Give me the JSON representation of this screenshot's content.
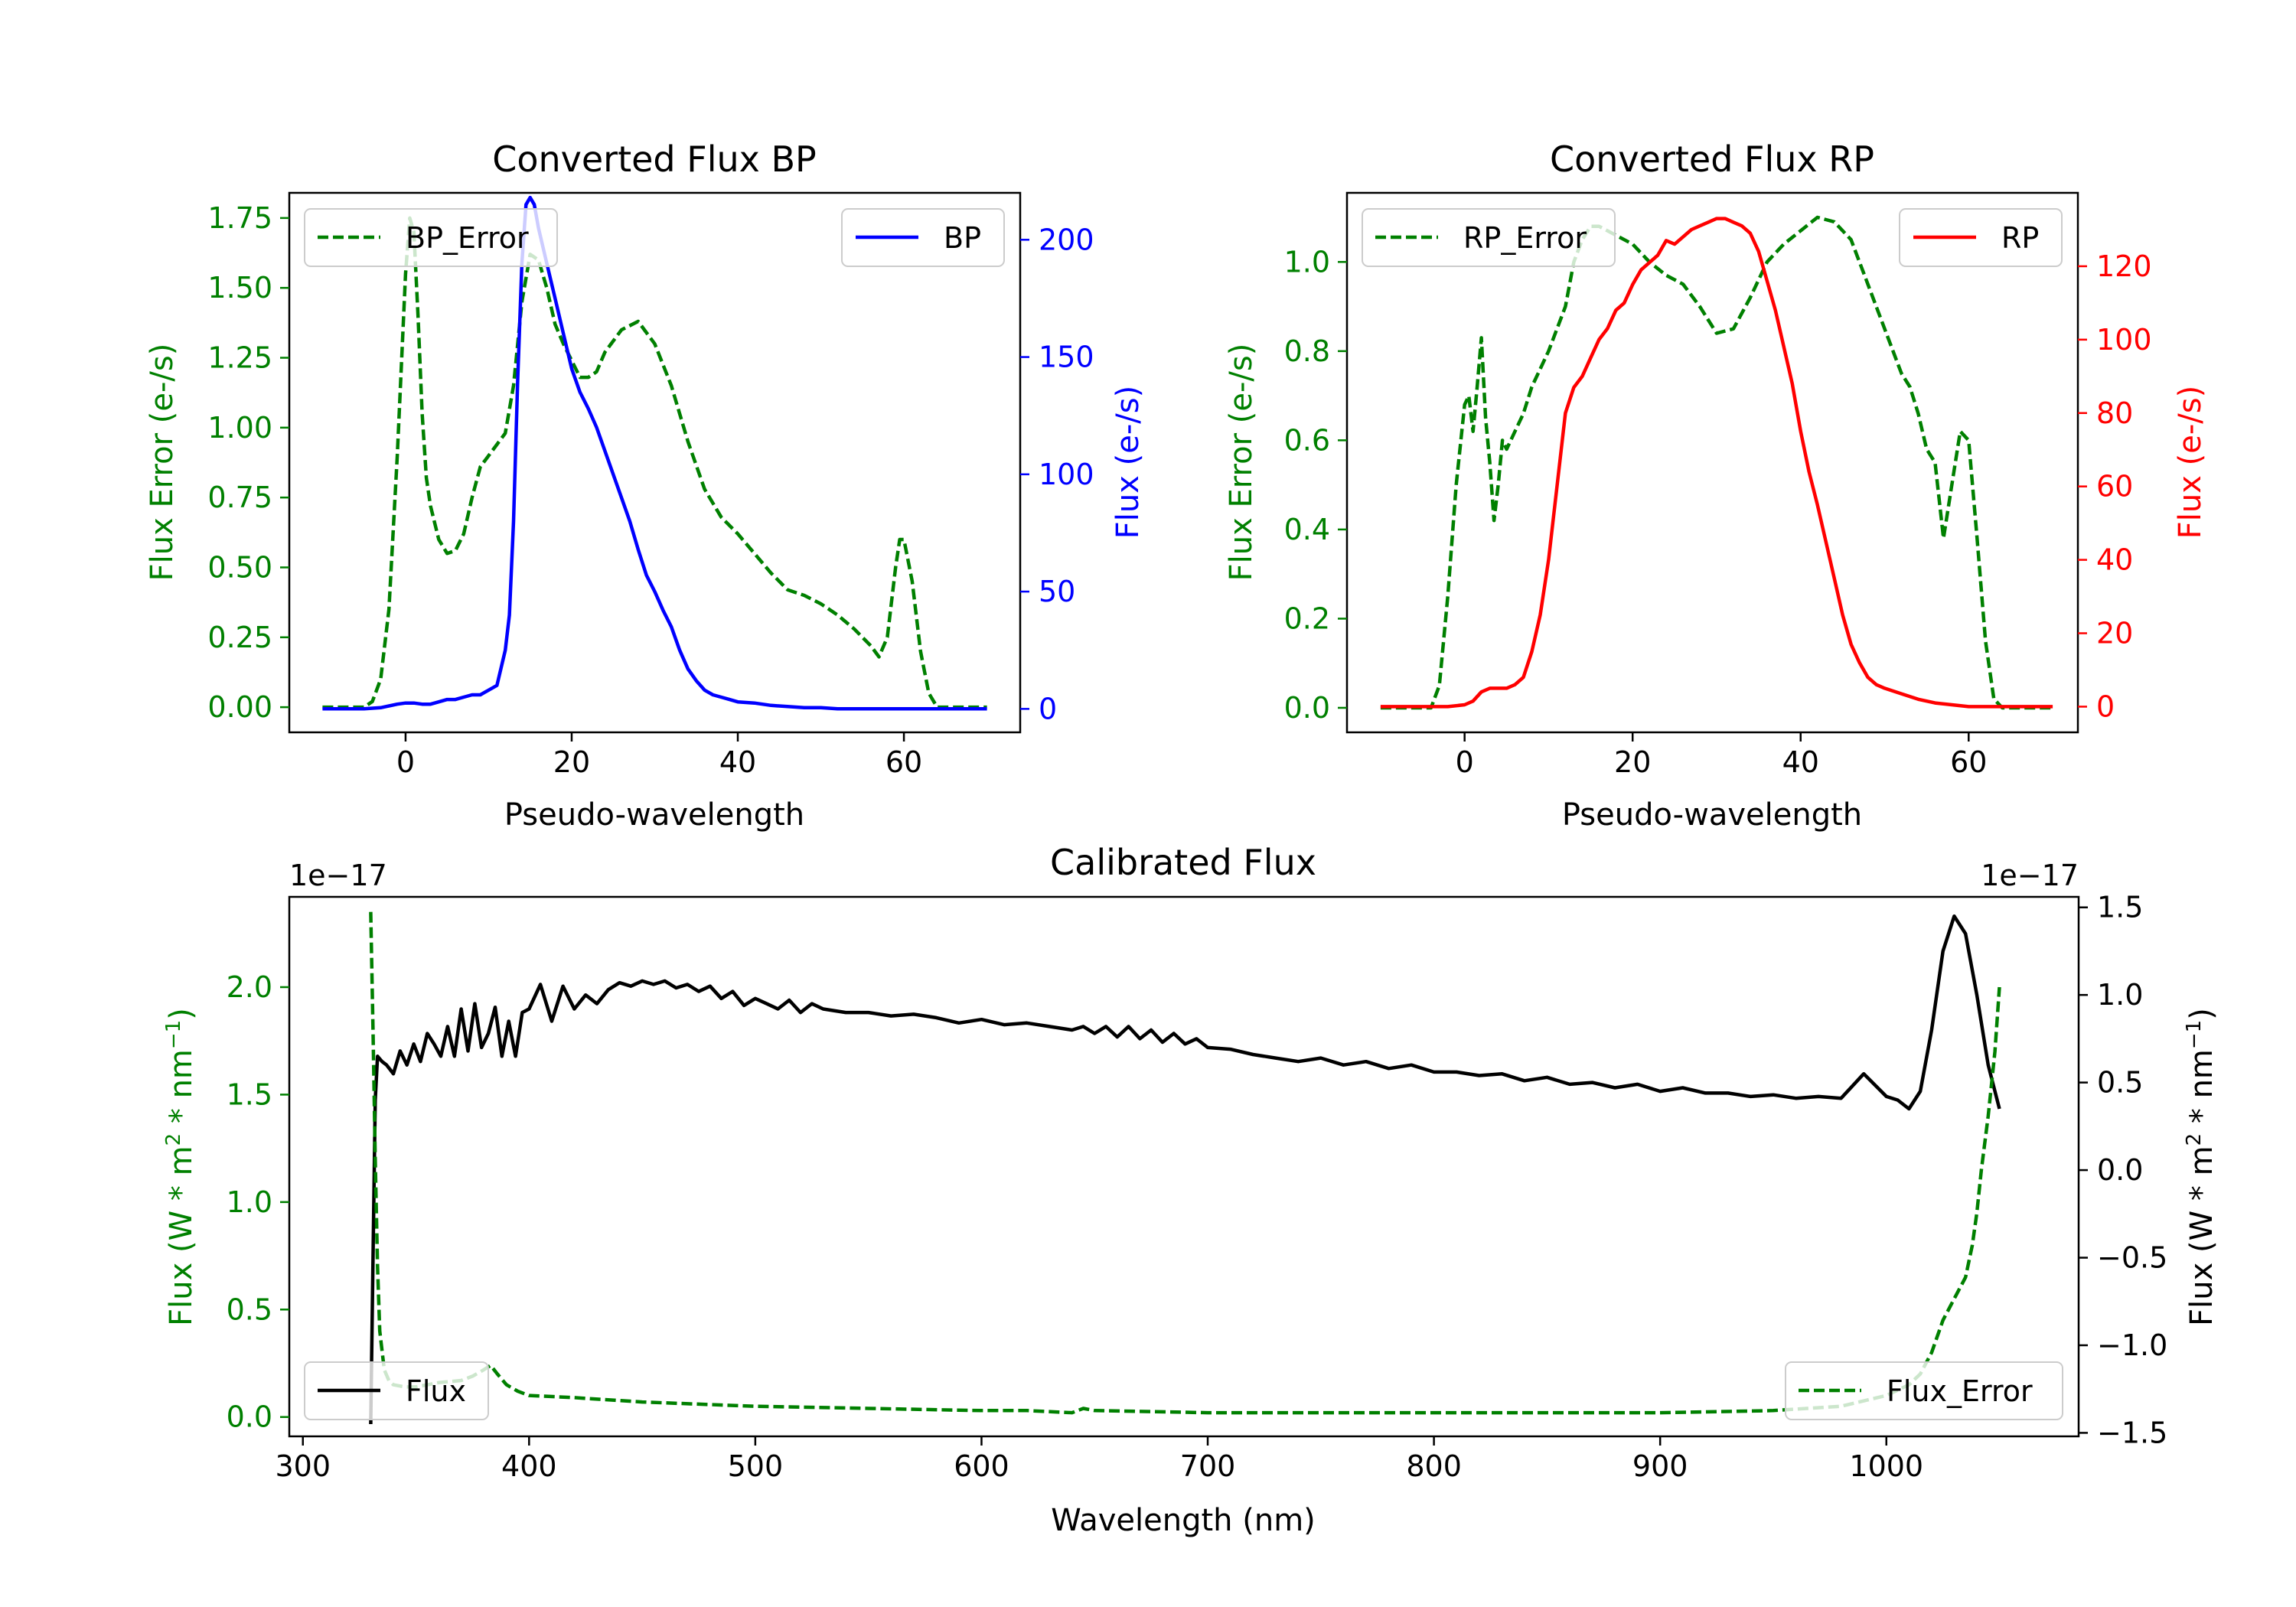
{
  "chart_data": [
    {
      "id": "bp",
      "type": "line",
      "title": "Converted Flux BP",
      "xlabel": "Pseudo-wavelength",
      "ylabel_left": "Flux Error (e-/s)",
      "ylabel_right": "Flux (e-/s)",
      "xlim": [
        -14,
        74
      ],
      "ylim_left": [
        -0.09,
        1.84
      ],
      "ylim_right": [
        -10,
        220
      ],
      "xticks": [
        0,
        20,
        40,
        60
      ],
      "yticks_left": [
        0.0,
        0.25,
        0.5,
        0.75,
        1.0,
        1.25,
        1.5,
        1.75
      ],
      "yticks_left_labels": [
        "0.00",
        "0.25",
        "0.50",
        "0.75",
        "1.00",
        "1.25",
        "1.50",
        "1.75"
      ],
      "yticks_right": [
        0,
        50,
        100,
        150,
        200
      ],
      "yticks_right_labels": [
        "0",
        "50",
        "100",
        "150",
        "200"
      ],
      "left_axis_color": "#008000",
      "right_axis_color": "#0000ff",
      "series": [
        {
          "name": "BP_Error",
          "axis": "left",
          "color": "#008000",
          "style": "dashed",
          "x": [
            -10,
            -5,
            -4,
            -3,
            -2,
            -1,
            0,
            0.5,
            1,
            1.5,
            2,
            2.5,
            3,
            4,
            5,
            6,
            7,
            8,
            9,
            10,
            12,
            13,
            14,
            15,
            16,
            17,
            18,
            19,
            20,
            21,
            22,
            23,
            24,
            26,
            28,
            30,
            32,
            34,
            36,
            38,
            40,
            42,
            44,
            46,
            48,
            50,
            52,
            54,
            56,
            57,
            58,
            59,
            59.5,
            60,
            61,
            62,
            63,
            64,
            65,
            66,
            70
          ],
          "values": [
            0,
            0,
            0.02,
            0.1,
            0.35,
            0.9,
            1.55,
            1.75,
            1.7,
            1.4,
            1.05,
            0.82,
            0.72,
            0.6,
            0.55,
            0.56,
            0.62,
            0.75,
            0.86,
            0.9,
            0.98,
            1.15,
            1.45,
            1.62,
            1.6,
            1.5,
            1.37,
            1.3,
            1.24,
            1.18,
            1.18,
            1.2,
            1.27,
            1.35,
            1.38,
            1.3,
            1.15,
            0.95,
            0.78,
            0.68,
            0.62,
            0.55,
            0.48,
            0.42,
            0.4,
            0.37,
            0.33,
            0.28,
            0.22,
            0.18,
            0.25,
            0.5,
            0.6,
            0.6,
            0.45,
            0.2,
            0.05,
            0,
            0,
            0,
            0
          ]
        },
        {
          "name": "BP",
          "axis": "right",
          "color": "#0000ff",
          "style": "solid",
          "x": [
            -10,
            -5,
            -3,
            -1,
            0,
            1,
            2,
            3,
            4,
            5,
            6,
            7,
            8,
            9,
            10,
            11,
            12,
            12.5,
            13,
            13.5,
            14,
            14.5,
            15,
            15.5,
            16,
            17,
            18,
            19,
            20,
            21,
            22,
            23,
            24,
            25,
            26,
            27,
            28,
            29,
            30,
            31,
            32,
            33,
            34,
            35,
            36,
            37,
            38,
            39,
            40,
            42,
            44,
            46,
            48,
            50,
            52,
            54,
            56,
            58,
            60,
            62,
            64,
            66,
            70
          ],
          "values": [
            0,
            0,
            0.5,
            2,
            2.5,
            2.5,
            2,
            2,
            3,
            4,
            4,
            5,
            6,
            6,
            8,
            10,
            25,
            40,
            80,
            140,
            190,
            215,
            218,
            215,
            205,
            190,
            175,
            160,
            145,
            135,
            128,
            120,
            110,
            100,
            90,
            80,
            68,
            57,
            50,
            42,
            35,
            25,
            17,
            12,
            8,
            6,
            5,
            4,
            3,
            2.5,
            1.5,
            1,
            0.5,
            0.5,
            0,
            0,
            0,
            0,
            0,
            0,
            0,
            0,
            0
          ]
        }
      ],
      "legends": [
        {
          "label": "BP_Error",
          "position": "top-left"
        },
        {
          "label": "BP",
          "position": "top-right"
        }
      ]
    },
    {
      "id": "rp",
      "type": "line",
      "title": "Converted Flux RP",
      "xlabel": "Pseudo-wavelength",
      "ylabel_left": "Flux Error (e-/s)",
      "ylabel_right": "Flux (e-/s)",
      "xlim": [
        -14,
        73
      ],
      "ylim_left": [
        -0.055,
        1.155
      ],
      "ylim_right": [
        -7,
        140
      ],
      "xticks": [
        0,
        20,
        40,
        60
      ],
      "yticks_left": [
        0.0,
        0.2,
        0.4,
        0.6,
        0.8,
        1.0
      ],
      "yticks_left_labels": [
        "0.0",
        "0.2",
        "0.4",
        "0.6",
        "0.8",
        "1.0"
      ],
      "yticks_right": [
        0,
        20,
        40,
        60,
        80,
        100,
        120
      ],
      "yticks_right_labels": [
        "0",
        "20",
        "40",
        "60",
        "80",
        "100",
        "120"
      ],
      "left_axis_color": "#008000",
      "right_axis_color": "#ff0000",
      "series": [
        {
          "name": "RP_Error",
          "axis": "left",
          "color": "#008000",
          "style": "dashed",
          "x": [
            -10,
            -5,
            -4,
            -3,
            -2,
            -1,
            0,
            0.5,
            1,
            1.5,
            2,
            2.5,
            3,
            3.5,
            4,
            4.5,
            5,
            6,
            7,
            8,
            9,
            10,
            11,
            12,
            13,
            14,
            15,
            16,
            17,
            18,
            20,
            22,
            24,
            26,
            28,
            30,
            32,
            34,
            36,
            38,
            40,
            42,
            44,
            46,
            48,
            50,
            52,
            53,
            54,
            55,
            56,
            57,
            58,
            59,
            60,
            61,
            62,
            63,
            64,
            65,
            66,
            70
          ],
          "values": [
            0,
            0,
            0,
            0.05,
            0.25,
            0.5,
            0.68,
            0.7,
            0.62,
            0.72,
            0.83,
            0.65,
            0.55,
            0.42,
            0.5,
            0.6,
            0.58,
            0.62,
            0.66,
            0.72,
            0.76,
            0.8,
            0.85,
            0.9,
            1.0,
            1.05,
            1.08,
            1.08,
            1.07,
            1.06,
            1.04,
            1.0,
            0.97,
            0.95,
            0.9,
            0.84,
            0.85,
            0.92,
            1.0,
            1.04,
            1.07,
            1.1,
            1.09,
            1.05,
            0.95,
            0.85,
            0.75,
            0.72,
            0.66,
            0.58,
            0.55,
            0.38,
            0.5,
            0.62,
            0.6,
            0.38,
            0.15,
            0.02,
            0,
            0,
            0,
            0
          ]
        },
        {
          "name": "RP",
          "axis": "right",
          "color": "#ff0000",
          "style": "solid",
          "x": [
            -10,
            -4,
            -2,
            0,
            1,
            2,
            3,
            4,
            5,
            6,
            7,
            8,
            9,
            10,
            11,
            12,
            13,
            14,
            15,
            16,
            17,
            18,
            19,
            20,
            21,
            22,
            23,
            24,
            25,
            26,
            27,
            28,
            29,
            30,
            31,
            32,
            33,
            34,
            35,
            36,
            37,
            38,
            39,
            40,
            41,
            42,
            43,
            44,
            45,
            46,
            47,
            48,
            49,
            50,
            52,
            54,
            56,
            58,
            60,
            62,
            64,
            66,
            70
          ],
          "values": [
            0,
            0,
            0,
            0.5,
            1.5,
            4,
            5,
            5,
            5,
            6,
            8,
            15,
            25,
            40,
            60,
            80,
            87,
            90,
            95,
            100,
            103,
            108,
            110,
            115,
            119,
            121,
            123,
            127,
            126,
            128,
            130,
            131,
            132,
            133,
            133,
            132,
            131,
            129,
            124,
            116,
            108,
            98,
            88,
            75,
            64,
            55,
            45,
            35,
            25,
            17,
            12,
            8,
            6,
            5,
            3.5,
            2,
            1,
            0.5,
            0,
            0,
            0,
            0,
            0
          ]
        }
      ],
      "legends": [
        {
          "label": "RP_Error",
          "position": "top-left"
        },
        {
          "label": "RP",
          "position": "top-right"
        }
      ]
    },
    {
      "id": "cal",
      "type": "line",
      "title": "Calibrated Flux",
      "xlabel": "Wavelength (nm)",
      "ylabel_left": "Flux (W * m^2 * nm^-1)",
      "ylabel_right": "Flux (W * m^2 * nm^-1)",
      "offset_left": "1e−17",
      "offset_right": "1e−17",
      "xlim": [
        294,
        1085
      ],
      "ylim_left": [
        -0.09,
        2.42
      ],
      "ylim_right": [
        -1.52,
        1.56
      ],
      "xticks": [
        300,
        400,
        500,
        600,
        700,
        800,
        900,
        1000
      ],
      "xtick_labels": [
        "300",
        "400",
        "500",
        "600",
        "700",
        "800",
        "900",
        "1000"
      ],
      "yticks_left": [
        0.0,
        0.5,
        1.0,
        1.5,
        2.0
      ],
      "yticks_left_labels": [
        "0.0",
        "0.5",
        "1.0",
        "1.5",
        "2.0"
      ],
      "yticks_right": [
        -1.5,
        -1.0,
        -0.5,
        0.0,
        0.5,
        1.0,
        1.5
      ],
      "yticks_right_labels": [
        "−1.5",
        "−1.0",
        "−0.5",
        "0.0",
        "0.5",
        "1.0",
        "1.5"
      ],
      "left_axis_color": "#008000",
      "right_axis_color": "#000000",
      "series": [
        {
          "name": "Flux",
          "axis": "right",
          "color": "#000000",
          "style": "solid",
          "x": [
            330,
            331,
            332,
            333,
            335,
            337,
            340,
            343,
            346,
            349,
            352,
            355,
            358,
            361,
            364,
            367,
            370,
            373,
            376,
            379,
            382,
            385,
            388,
            391,
            394,
            397,
            400,
            405,
            410,
            415,
            420,
            425,
            430,
            435,
            440,
            445,
            450,
            455,
            460,
            465,
            470,
            475,
            480,
            485,
            490,
            495,
            500,
            505,
            510,
            515,
            520,
            525,
            530,
            540,
            550,
            560,
            570,
            580,
            590,
            600,
            610,
            620,
            630,
            640,
            645,
            650,
            655,
            660,
            665,
            670,
            675,
            680,
            685,
            690,
            695,
            700,
            710,
            720,
            730,
            740,
            750,
            760,
            770,
            780,
            790,
            800,
            810,
            820,
            830,
            840,
            850,
            860,
            870,
            880,
            890,
            900,
            910,
            920,
            930,
            940,
            950,
            960,
            970,
            980,
            990,
            1000,
            1005,
            1010,
            1015,
            1020,
            1025,
            1030,
            1035,
            1040,
            1045,
            1050
          ],
          "values": [
            -1.45,
            -0.5,
            0.4,
            0.65,
            0.62,
            0.6,
            0.55,
            0.68,
            0.6,
            0.72,
            0.62,
            0.78,
            0.72,
            0.65,
            0.82,
            0.65,
            0.92,
            0.68,
            0.95,
            0.7,
            0.78,
            0.93,
            0.65,
            0.85,
            0.65,
            0.9,
            0.92,
            1.06,
            0.85,
            1.05,
            0.92,
            1.0,
            0.95,
            1.03,
            1.07,
            1.05,
            1.08,
            1.06,
            1.08,
            1.04,
            1.06,
            1.02,
            1.05,
            0.98,
            1.02,
            0.94,
            0.98,
            0.95,
            0.92,
            0.97,
            0.9,
            0.95,
            0.92,
            0.9,
            0.9,
            0.88,
            0.89,
            0.87,
            0.84,
            0.86,
            0.83,
            0.84,
            0.82,
            0.8,
            0.82,
            0.78,
            0.82,
            0.76,
            0.82,
            0.75,
            0.8,
            0.73,
            0.78,
            0.72,
            0.75,
            0.7,
            0.69,
            0.66,
            0.64,
            0.62,
            0.64,
            0.6,
            0.62,
            0.58,
            0.6,
            0.56,
            0.56,
            0.54,
            0.55,
            0.51,
            0.53,
            0.49,
            0.5,
            0.47,
            0.49,
            0.45,
            0.47,
            0.44,
            0.44,
            0.42,
            0.43,
            0.41,
            0.42,
            0.41,
            0.55,
            0.42,
            0.4,
            0.35,
            0.45,
            0.8,
            1.25,
            1.45,
            1.35,
            1.0,
            0.6,
            0.35
          ]
        },
        {
          "name": "Flux_Error",
          "axis": "left",
          "color": "#008000",
          "style": "dashed",
          "x": [
            330,
            331,
            332,
            333,
            334,
            336,
            338,
            340,
            345,
            350,
            360,
            370,
            375,
            380,
            383,
            386,
            390,
            395,
            400,
            420,
            450,
            500,
            550,
            600,
            620,
            640,
            645,
            650,
            700,
            750,
            800,
            850,
            900,
            950,
            980,
            1000,
            1010,
            1015,
            1020,
            1025,
            1030,
            1035,
            1038,
            1040,
            1042,
            1045,
            1048,
            1050
          ],
          "values": [
            2.35,
            1.8,
            1.2,
            0.7,
            0.4,
            0.22,
            0.17,
            0.15,
            0.14,
            0.14,
            0.16,
            0.17,
            0.19,
            0.22,
            0.24,
            0.2,
            0.15,
            0.12,
            0.1,
            0.09,
            0.07,
            0.05,
            0.04,
            0.03,
            0.03,
            0.02,
            0.04,
            0.03,
            0.02,
            0.02,
            0.02,
            0.02,
            0.02,
            0.03,
            0.05,
            0.1,
            0.15,
            0.2,
            0.3,
            0.45,
            0.55,
            0.65,
            0.8,
            0.95,
            1.15,
            1.4,
            1.7,
            2.0
          ]
        }
      ],
      "legends": [
        {
          "label": "Flux",
          "position": "bottom-left"
        },
        {
          "label": "Flux_Error",
          "position": "bottom-right"
        }
      ]
    }
  ]
}
